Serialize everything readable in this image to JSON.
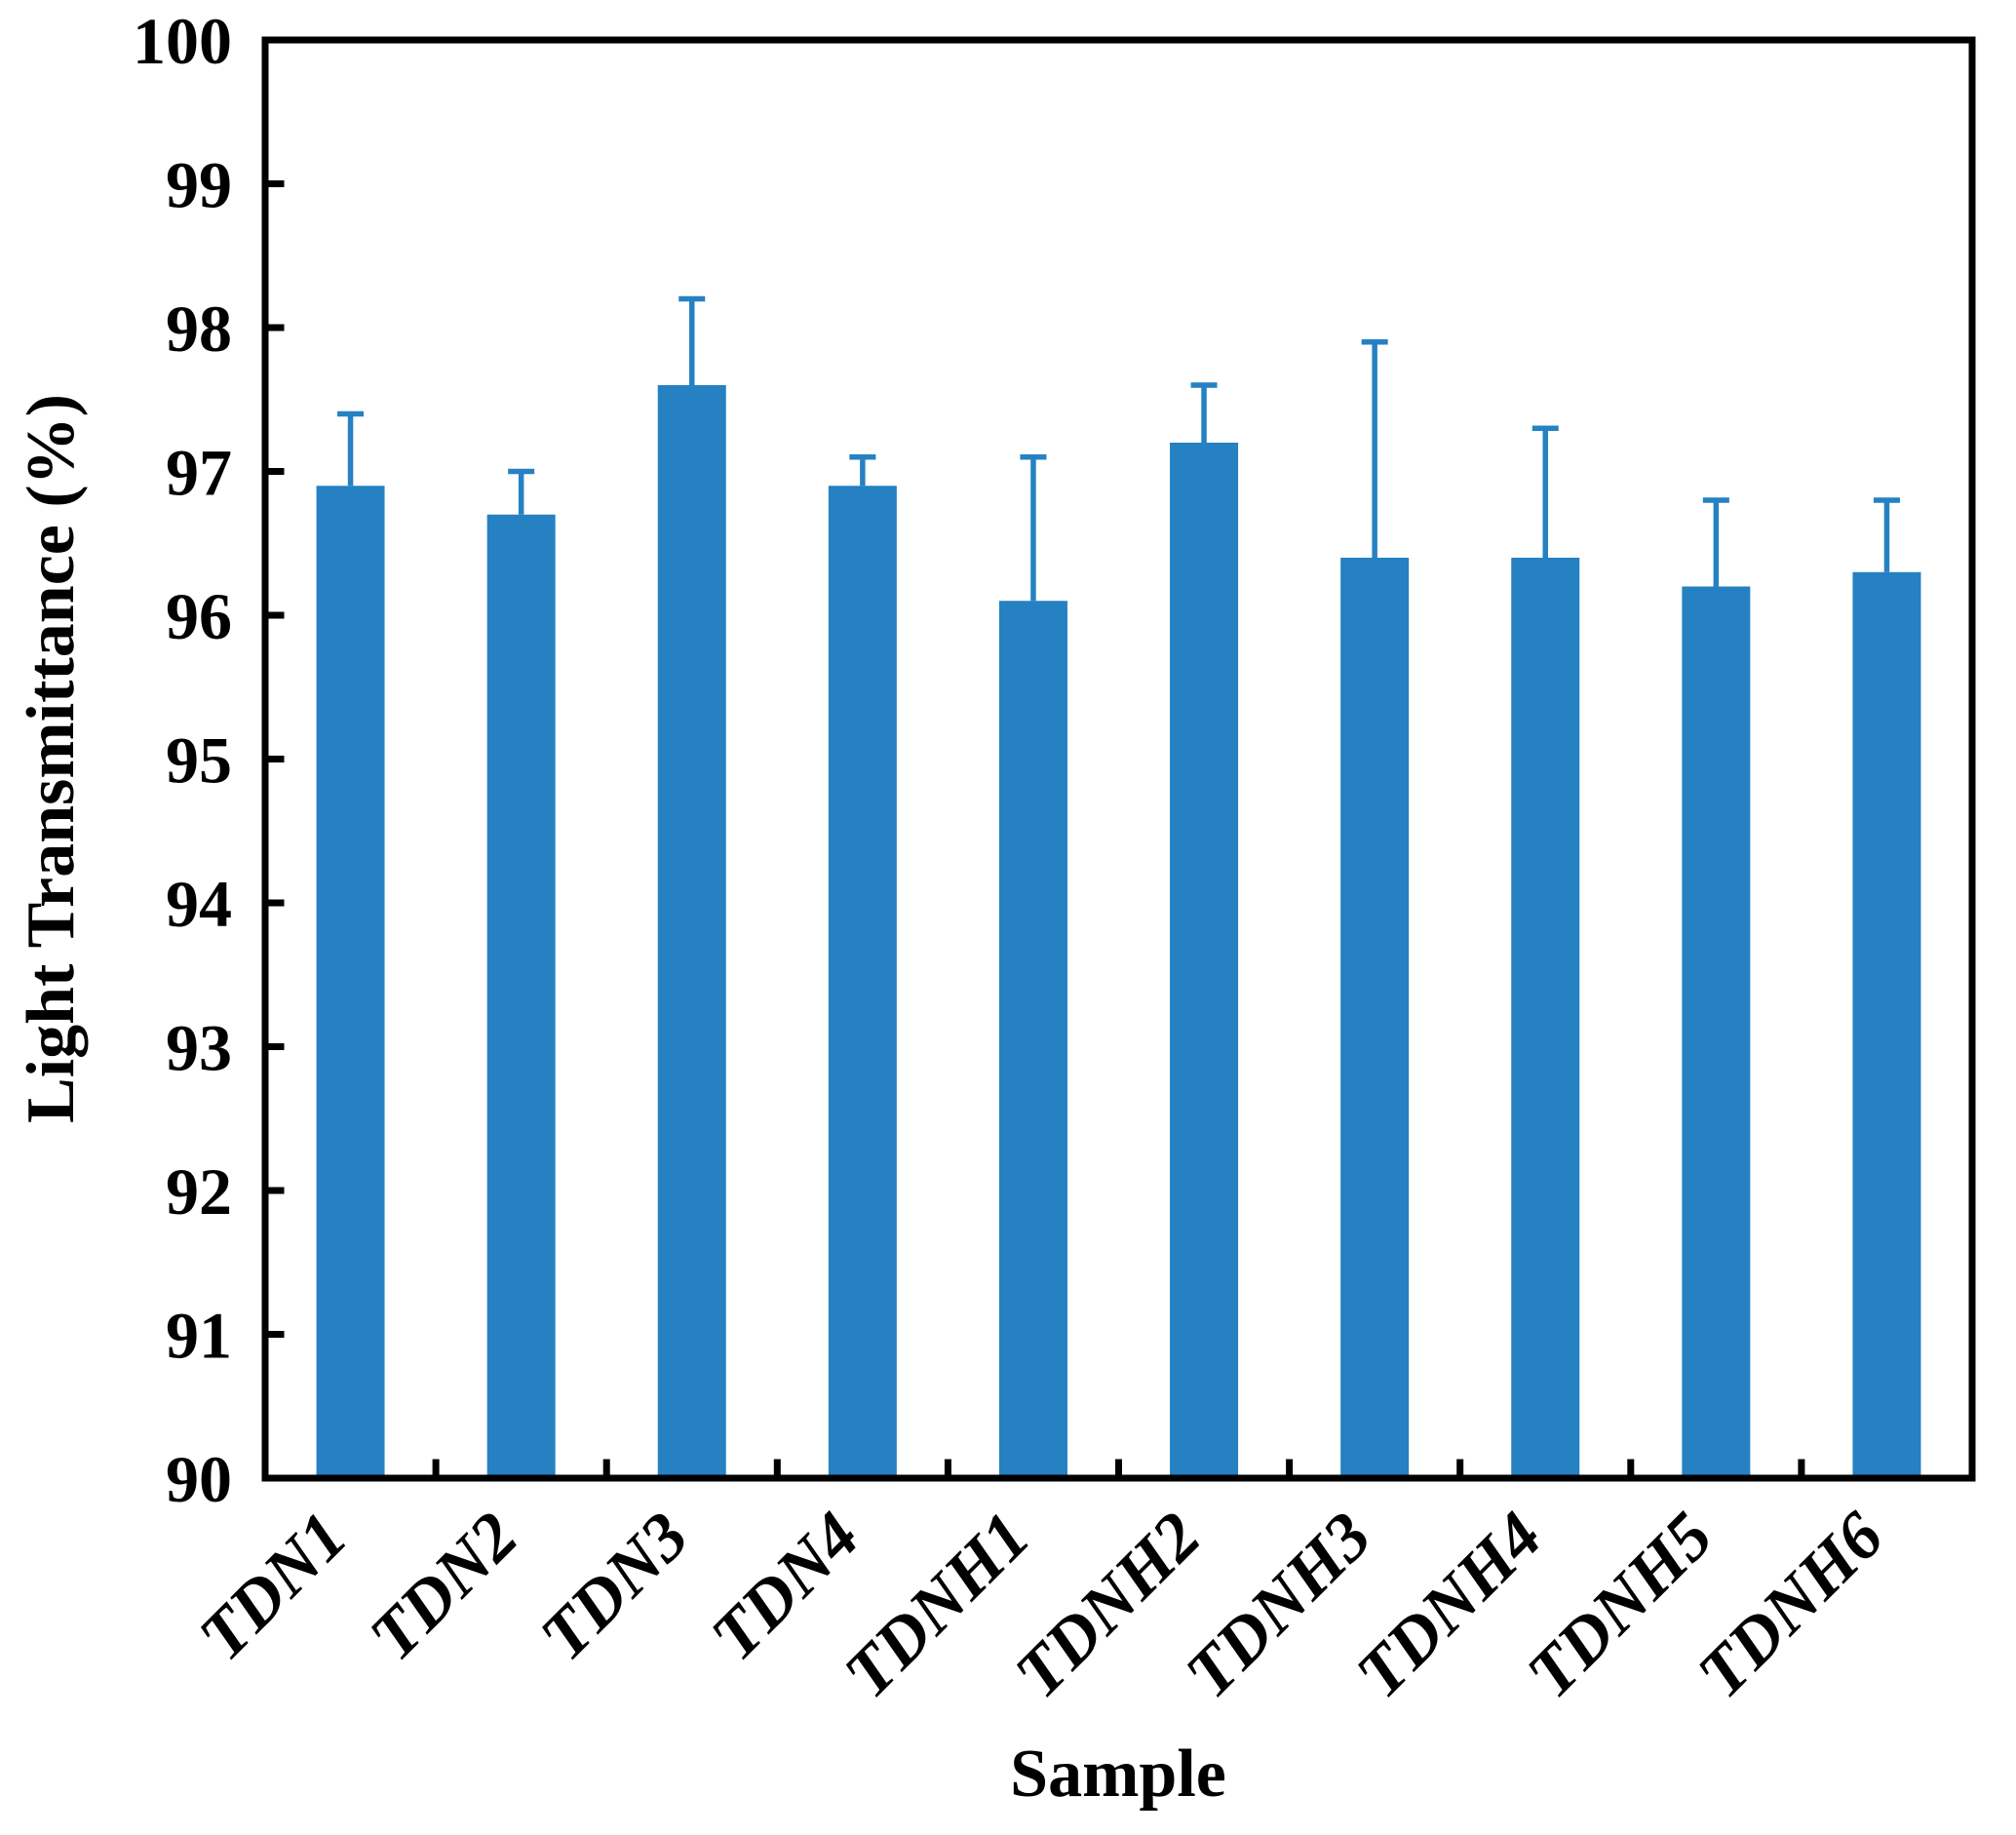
{
  "chart_data": {
    "type": "bar",
    "title": "",
    "xlabel": "Sample",
    "ylabel": "Light Transmittance (%)",
    "categories": [
      "TDN1",
      "TDN2",
      "TDN3",
      "TDN4",
      "TDNH1",
      "TDNH2",
      "TDNH3",
      "TDNH4",
      "TDNH5",
      "TDNH6"
    ],
    "values": [
      96.9,
      96.7,
      97.6,
      96.9,
      96.1,
      97.2,
      96.4,
      96.4,
      96.2,
      96.3
    ],
    "error_plus": [
      0.5,
      0.3,
      0.6,
      0.2,
      1.0,
      0.4,
      1.5,
      0.9,
      0.6,
      0.5
    ],
    "ylim": [
      90,
      100
    ],
    "yticks": [
      90,
      91,
      92,
      93,
      94,
      95,
      96,
      97,
      98,
      99,
      100
    ],
    "grid": false,
    "legend_position": "none",
    "x_tick_rotation_deg": 45,
    "tick_direction": "in",
    "bar_color": "#2581c2",
    "error_color": "#2581c2",
    "axis_color": "#000000",
    "background_color": "#ffffff"
  }
}
